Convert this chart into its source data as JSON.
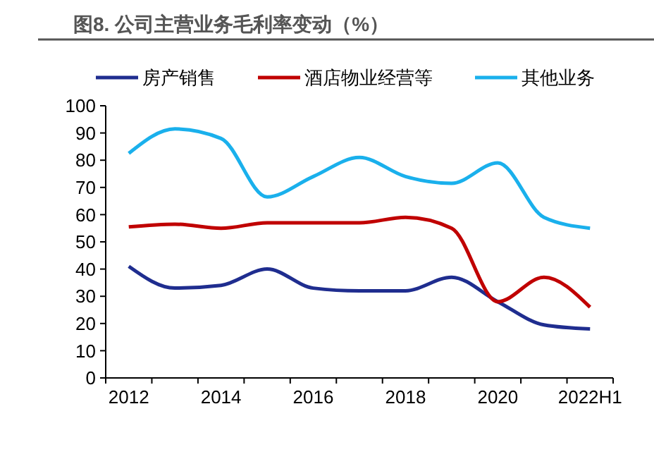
{
  "chart_data": {
    "type": "line",
    "title": "图8. 公司主营业务毛利率变动（%）",
    "categories": [
      "2012",
      null,
      "2014",
      null,
      "2016",
      null,
      "2018",
      null,
      "2020",
      null,
      "2022H1"
    ],
    "series": [
      {
        "name": "房产销售",
        "color": "#1f2d8f",
        "values": [
          41,
          33,
          34,
          40,
          33,
          32,
          32,
          37,
          28,
          19.5,
          18
        ]
      },
      {
        "name": "酒店物业经营等",
        "color": "#c00000",
        "values": [
          55.5,
          56.5,
          55,
          57,
          57,
          57,
          59,
          55,
          28,
          37,
          26
        ]
      },
      {
        "name": "其他业务",
        "color": "#1ab0ec",
        "values": [
          82.5,
          91.5,
          88,
          66.5,
          74,
          81,
          74,
          71.5,
          79,
          59,
          55
        ]
      }
    ],
    "ylim": [
      0,
      100
    ],
    "yticks": [
      0,
      10,
      20,
      30,
      40,
      50,
      60,
      70,
      80,
      90,
      100
    ],
    "grid": false,
    "legend": "top",
    "marker": "none",
    "line_style": "solid"
  }
}
